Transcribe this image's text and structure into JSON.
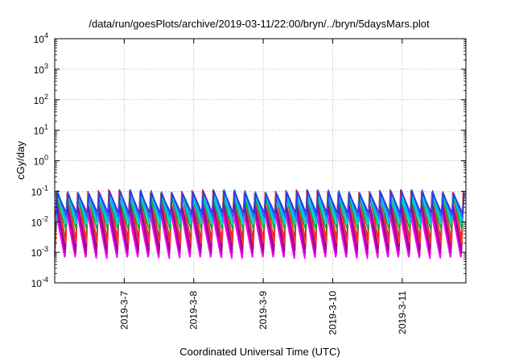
{
  "chart_data": {
    "type": "line",
    "title": "/data/run/goesPlots/archive/2019-03-11/22:00/bryn/../bryn/5daysMars.plot",
    "xlabel": "Coordinated Universal Time (UTC)",
    "ylabel": "cGy/day",
    "y_scale": "log",
    "ylim": [
      0.0001,
      10000
    ],
    "y_ticks": [
      {
        "exp": "-4",
        "value": 0.0001
      },
      {
        "exp": "-3",
        "value": 0.001
      },
      {
        "exp": "-2",
        "value": 0.01
      },
      {
        "exp": "-1",
        "value": 0.1
      },
      {
        "exp": "0",
        "value": 1
      },
      {
        "exp": "1",
        "value": 10
      },
      {
        "exp": "2",
        "value": 100
      },
      {
        "exp": "3",
        "value": 1000
      },
      {
        "exp": "4",
        "value": 10000
      }
    ],
    "y_tick_base": "10",
    "xlim": [
      "2019-03-06T00:00",
      "2019-03-11T22:00"
    ],
    "x_ticks": [
      "2019-3-7",
      "2019-3-8",
      "2019-3-9",
      "2019-3-10",
      "2019-3-11"
    ],
    "x_tick_dates": [
      "2019-03-07T00:00",
      "2019-03-08T00:00",
      "2019-03-09T00:00",
      "2019-03-10T00:00",
      "2019-03-11T00:00"
    ],
    "grid": true,
    "legend": "none",
    "description_of_pattern": "",
    "series": [
      {
        "color": "#ff00ff",
        "peak": 0.02,
        "trough": 0.0007
      },
      {
        "color": "#cc00cc",
        "peak": 0.03,
        "trough": 0.0009
      },
      {
        "color": "#aa0088",
        "peak": 0.04,
        "trough": 0.0012
      },
      {
        "color": "#8800aa",
        "peak": 0.05,
        "trough": 0.0018
      },
      {
        "color": "#cc2222",
        "peak": 0.1,
        "trough": 0.003
      },
      {
        "color": "#ff3333",
        "peak": 0.08,
        "trough": 0.002
      },
      {
        "color": "#00aa44",
        "peak": 0.06,
        "trough": 0.006
      },
      {
        "color": "#00cccc",
        "peak": 0.07,
        "trough": 0.009
      },
      {
        "color": "#00bbee",
        "peak": 0.08,
        "trough": 0.012
      },
      {
        "color": "#2266ff",
        "peak": 0.1,
        "trough": 0.015
      },
      {
        "color": "#3333dd",
        "peak": 0.09,
        "trough": 0.02
      }
    ],
    "oscillation_period_hours": 3.6,
    "sample_peaks_approx": [
      0.1,
      0.09,
      0.1,
      0.08,
      0.1,
      0.09,
      0.11,
      0.1,
      0.09,
      0.1
    ]
  }
}
